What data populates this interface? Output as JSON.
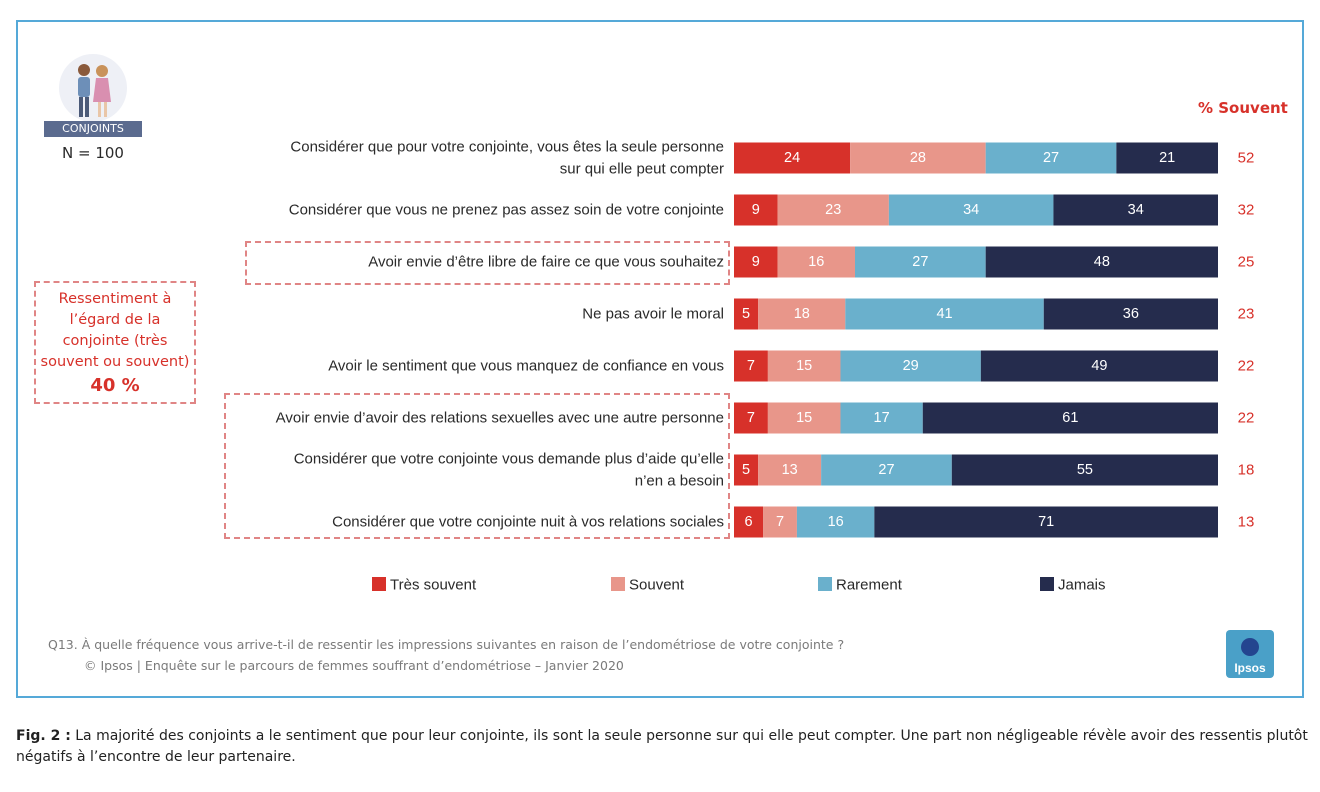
{
  "badge": {
    "label": "CONJOINTS",
    "sample": "N = 100"
  },
  "callout": {
    "text": "Ressentiment à l’égard de la conjointe (très souvent ou souvent)",
    "value": "40 %"
  },
  "column_header": "% Souvent",
  "footer": {
    "question": "Q13. À quelle fréquence vous arrive-t-il de ressentir les impressions suivantes en raison de l’endométriose de votre conjointe ?",
    "source": "© Ipsos | Enquête sur le parcours de femmes souffrant d’endométriose – Janvier 2020",
    "logo_text": "Ipsos"
  },
  "caption": {
    "label": "Fig. 2 :",
    "text": "La majorité des conjoints a le sentiment que pour leur conjointe, ils sont la seule personne sur qui elle peut compter. Une part non négligeable révèle avoir des ressentis plutôt négatifs à l’encontre de leur partenaire."
  },
  "colors": {
    "tres_souvent": "#d7312a",
    "souvent": "#e8968a",
    "rarement": "#6ab0cc",
    "jamais": "#252c4d",
    "accent": "#d7312a",
    "frame": "#55a9d8"
  },
  "chart_data": {
    "type": "bar",
    "orientation": "horizontal",
    "stacked": true,
    "categories": [
      [
        "Considérer que pour votre conjointe, vous êtes la seule personne",
        "sur qui elle peut compter"
      ],
      [
        "Considérer que vous ne prenez pas assez soin de votre conjointe"
      ],
      [
        "Avoir envie d’être libre de faire ce que vous souhaitez"
      ],
      [
        "Ne pas avoir le moral"
      ],
      [
        "Avoir le sentiment que vous manquez de confiance en vous"
      ],
      [
        "Avoir envie d’avoir des relations sexuelles avec une autre personne"
      ],
      [
        "Considérer que votre conjointe vous demande plus d’aide qu’elle",
        "n’en a besoin"
      ],
      [
        "Considérer que votre conjointe nuit à vos relations sociales"
      ]
    ],
    "series": [
      {
        "name": "Très souvent",
        "color": "#d7312a",
        "values": [
          24,
          9,
          9,
          5,
          7,
          7,
          5,
          6
        ]
      },
      {
        "name": "Souvent",
        "color": "#e8968a",
        "values": [
          28,
          23,
          16,
          18,
          15,
          15,
          13,
          7
        ]
      },
      {
        "name": "Rarement",
        "color": "#6ab0cc",
        "values": [
          27,
          34,
          27,
          41,
          29,
          17,
          27,
          16
        ]
      },
      {
        "name": "Jamais",
        "color": "#252c4d",
        "values": [
          21,
          34,
          48,
          36,
          49,
          61,
          55,
          71
        ]
      }
    ],
    "souvent_totals": [
      52,
      32,
      25,
      23,
      22,
      22,
      18,
      13
    ],
    "legend_position": "bottom",
    "grid": false
  }
}
